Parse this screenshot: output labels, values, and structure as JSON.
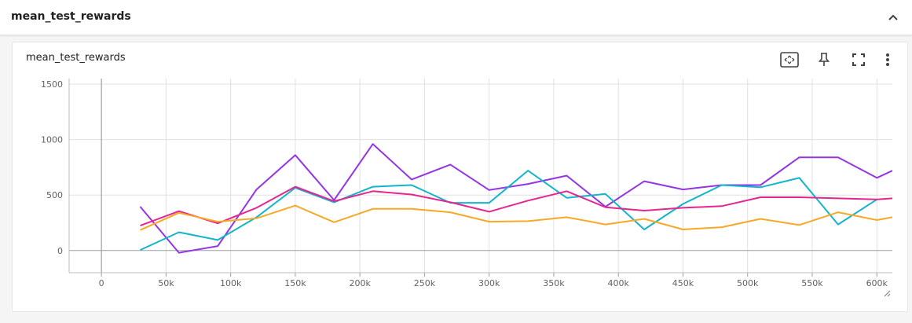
{
  "section": {
    "title": "mean_test_rewards"
  },
  "card": {
    "title": "mean_test_rewards"
  },
  "icons": {
    "collapse": "chevron-up-icon",
    "fit": "fit-to-domain-icon",
    "pin": "pin-icon",
    "fullscreen": "fullscreen-icon",
    "more": "more-vert-icon"
  },
  "chart_data": {
    "type": "line",
    "title": "",
    "xlabel": "",
    "ylabel": "",
    "xlim": [
      -25000,
      612000
    ],
    "ylim": [
      -200,
      1550
    ],
    "x_ticks": [
      {
        "value": 0,
        "label": "0"
      },
      {
        "value": 50000,
        "label": "50k"
      },
      {
        "value": 100000,
        "label": "100k"
      },
      {
        "value": 150000,
        "label": "150k"
      },
      {
        "value": 200000,
        "label": "200k"
      },
      {
        "value": 250000,
        "label": "250k"
      },
      {
        "value": 300000,
        "label": "300k"
      },
      {
        "value": 350000,
        "label": "350k"
      },
      {
        "value": 400000,
        "label": "400k"
      },
      {
        "value": 450000,
        "label": "450k"
      },
      {
        "value": 500000,
        "label": "500k"
      },
      {
        "value": 550000,
        "label": "550k"
      },
      {
        "value": 600000,
        "label": "600k"
      }
    ],
    "y_ticks": [
      {
        "value": 0,
        "label": "0"
      },
      {
        "value": 500,
        "label": "500"
      },
      {
        "value": 1000,
        "label": "1000"
      },
      {
        "value": 1500,
        "label": "1500"
      }
    ],
    "grid": true,
    "series": [
      {
        "color": "#9334e6",
        "x": [
          30000,
          60000,
          90000,
          120000,
          150000,
          180000,
          210000,
          240000,
          270000,
          300000,
          330000,
          360000,
          390000,
          420000,
          450000,
          480000,
          510000,
          540000,
          570000,
          600000,
          612000
        ],
        "y": [
          395,
          -20,
          40,
          550,
          860,
          455,
          960,
          640,
          775,
          545,
          600,
          675,
          395,
          625,
          550,
          590,
          590,
          840,
          840,
          655,
          720
        ]
      },
      {
        "color": "#12b5cb",
        "x": [
          30000,
          60000,
          90000,
          120000,
          150000,
          180000,
          210000,
          240000,
          270000,
          300000,
          330000,
          360000,
          390000,
          420000,
          450000,
          480000,
          510000,
          540000,
          570000,
          600000
        ],
        "y": [
          5,
          165,
          95,
          300,
          565,
          435,
          575,
          590,
          430,
          430,
          720,
          475,
          510,
          190,
          420,
          590,
          570,
          655,
          235,
          460
        ]
      },
      {
        "color": "#e52592",
        "x": [
          30000,
          60000,
          90000,
          120000,
          150000,
          180000,
          210000,
          240000,
          270000,
          300000,
          330000,
          360000,
          390000,
          420000,
          450000,
          480000,
          510000,
          540000,
          570000,
          600000,
          612000
        ],
        "y": [
          225,
          355,
          245,
          385,
          575,
          445,
          535,
          505,
          435,
          350,
          450,
          535,
          390,
          360,
          385,
          400,
          480,
          480,
          470,
          460,
          470
        ]
      },
      {
        "color": "#f9a825",
        "x": [
          30000,
          60000,
          90000,
          120000,
          150000,
          180000,
          210000,
          240000,
          270000,
          300000,
          330000,
          360000,
          390000,
          420000,
          450000,
          480000,
          510000,
          540000,
          570000,
          600000,
          612000
        ],
        "y": [
          185,
          340,
          260,
          290,
          405,
          255,
          375,
          375,
          345,
          260,
          265,
          300,
          235,
          285,
          190,
          210,
          285,
          230,
          345,
          275,
          300
        ]
      }
    ]
  }
}
